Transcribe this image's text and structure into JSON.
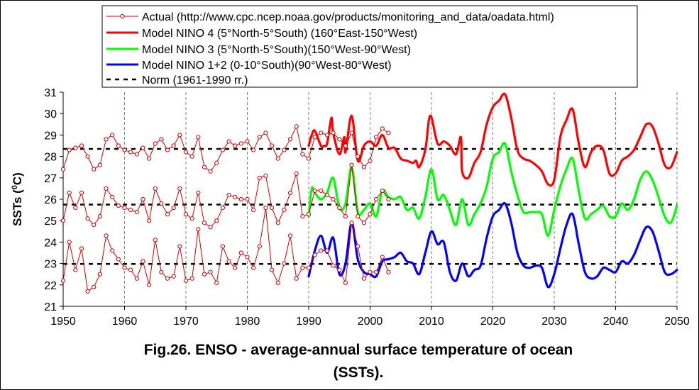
{
  "chart_data": {
    "type": "line",
    "caption_line1": "Fig.26. ENSO - average-annual surface temperature of ocean",
    "caption_line2": "(SSTs).",
    "ylabel_text": "SSTs (",
    "ylabel_sup": "0",
    "ylabel_unit": "C)",
    "xlim": [
      1950,
      2050
    ],
    "ylim": [
      21,
      31
    ],
    "x_ticks": [
      1950,
      1960,
      1970,
      1980,
      1990,
      2000,
      2010,
      2020,
      2030,
      2040,
      2050
    ],
    "y_ticks": [
      21,
      22,
      23,
      24,
      25,
      26,
      27,
      28,
      29,
      30,
      31
    ],
    "grid": "vertical dashed gridlines at each x tick",
    "legend_position": "top",
    "legend": [
      "Actual (http://www.cpc.ncep.noaa.gov/products/monitoring_and_data/oadata.html)",
      "Model NINO 4 (5°North-5°South) (160°East-150°West)",
      "Model NINO 3 (5°North-5°South)(150°West-90°West)",
      "Model NINO 1+2 (0-10°South)(90°West-80°West)",
      "Norm (1961-1990 rr.)"
    ],
    "colors": {
      "actual": "#cc0000",
      "nino4": "#ff0000",
      "nino3": "#00ff00",
      "nino12": "#0000ff",
      "norm": "#000000"
    },
    "norms": [
      28.35,
      25.75,
      22.98
    ],
    "series": [
      {
        "legend_index": 0,
        "style": "actual",
        "x": [
          1950,
          1951,
          1952,
          1953,
          1954,
          1955,
          1956,
          1957,
          1958,
          1959,
          1960,
          1961,
          1962,
          1963,
          1964,
          1965,
          1966,
          1967,
          1968,
          1969,
          1970,
          1971,
          1972,
          1973,
          1974,
          1975,
          1976,
          1977,
          1978,
          1979,
          1980,
          1981,
          1982,
          1983,
          1984,
          1985,
          1986,
          1987,
          1988,
          1989,
          1990,
          1991,
          1992,
          1993,
          1994,
          1995,
          1996,
          1997,
          1998,
          1999,
          2000,
          2001,
          2002,
          2003
        ],
        "values": [
          27.4,
          28.3,
          28.4,
          28.5,
          28.0,
          27.4,
          27.6,
          28.8,
          29.0,
          28.5,
          28.3,
          28.2,
          28.1,
          28.4,
          27.9,
          28.6,
          28.8,
          28.3,
          28.5,
          29.0,
          28.2,
          28.0,
          28.9,
          27.5,
          27.3,
          27.7,
          28.3,
          28.7,
          28.5,
          28.6,
          28.7,
          28.3,
          28.9,
          29.1,
          28.5,
          27.9,
          28.3,
          28.8,
          29.4,
          28.1,
          27.9,
          28.9,
          29.1,
          29.0,
          29.1,
          28.8,
          28.5,
          29.1,
          28.0,
          27.5,
          27.8,
          28.9,
          29.3,
          29.1
        ]
      },
      {
        "legend_index": 0,
        "style": "actual",
        "x": [
          1950,
          1951,
          1952,
          1953,
          1954,
          1955,
          1956,
          1957,
          1958,
          1959,
          1960,
          1961,
          1962,
          1963,
          1964,
          1965,
          1966,
          1967,
          1968,
          1969,
          1970,
          1971,
          1972,
          1973,
          1974,
          1975,
          1976,
          1977,
          1978,
          1979,
          1980,
          1981,
          1982,
          1983,
          1984,
          1985,
          1986,
          1987,
          1988,
          1989,
          1990,
          1991,
          1992,
          1993,
          1994,
          1995,
          1996,
          1997,
          1998,
          1999,
          2000,
          2001,
          2002,
          2003
        ],
        "values": [
          25.0,
          26.3,
          25.6,
          26.3,
          25.1,
          24.8,
          25.2,
          26.5,
          26.1,
          25.7,
          25.6,
          25.5,
          25.4,
          26.0,
          25.0,
          26.5,
          25.8,
          25.3,
          25.6,
          26.5,
          25.3,
          25.1,
          26.3,
          24.9,
          24.7,
          25.0,
          25.6,
          26.2,
          26.1,
          26.0,
          26.0,
          25.5,
          27.0,
          27.1,
          25.6,
          24.9,
          25.5,
          26.3,
          27.2,
          25.2,
          25.3,
          26.4,
          26.4,
          26.2,
          26.0,
          25.6,
          25.2,
          27.6,
          25.2,
          24.9,
          25.3,
          26.0,
          26.4,
          26.0
        ]
      },
      {
        "legend_index": 0,
        "style": "actual",
        "x": [
          1950,
          1951,
          1952,
          1953,
          1954,
          1955,
          1956,
          1957,
          1958,
          1959,
          1960,
          1961,
          1962,
          1963,
          1964,
          1965,
          1966,
          1967,
          1968,
          1969,
          1970,
          1971,
          1972,
          1973,
          1974,
          1975,
          1976,
          1977,
          1978,
          1979,
          1980,
          1981,
          1982,
          1983,
          1984,
          1985,
          1986,
          1987,
          1988,
          1989,
          1990,
          1991,
          1992,
          1993,
          1994,
          1995,
          1996,
          1997,
          1998,
          1999,
          2000,
          2001,
          2002,
          2003
        ],
        "values": [
          22.2,
          24.0,
          22.7,
          23.7,
          21.7,
          21.9,
          22.5,
          24.3,
          23.6,
          23.2,
          22.8,
          22.7,
          22.3,
          23.1,
          22.0,
          24.1,
          22.6,
          22.3,
          22.4,
          23.8,
          22.2,
          22.3,
          24.6,
          22.5,
          22.6,
          22.1,
          23.8,
          23.1,
          22.8,
          23.5,
          23.3,
          22.8,
          23.8,
          25.6,
          22.7,
          22.1,
          23.0,
          24.3,
          22.3,
          22.8,
          22.8,
          23.4,
          23.6,
          23.6,
          22.9,
          22.7,
          22.1,
          24.9,
          23.8,
          22.3,
          22.6,
          22.6,
          23.3,
          22.6
        ]
      },
      {
        "legend_index": 1,
        "style": "nino4",
        "x": [
          1990,
          1990.5,
          1991,
          1992,
          1992.5,
          1993,
          1993.7,
          1994,
          1995,
          1995.8,
          1996,
          1997,
          1998,
          1999,
          2000,
          2001,
          2002,
          2003,
          2004,
          2005,
          2006,
          2007,
          2007.5,
          2008,
          2009,
          2009.8,
          2011,
          2012,
          2013,
          2014,
          2014.8,
          2015,
          2016,
          2017,
          2018,
          2019,
          2020,
          2021,
          2022,
          2023,
          2024,
          2025,
          2026,
          2027,
          2028,
          2029,
          2030,
          2031,
          2032,
          2033,
          2034,
          2035,
          2036,
          2037,
          2038,
          2039,
          2040,
          2041,
          2042,
          2043,
          2044,
          2045,
          2046,
          2047,
          2048,
          2049,
          2050
        ],
        "values": [
          28.5,
          29.0,
          29.2,
          28.5,
          28.5,
          28.6,
          29.8,
          29.1,
          28.1,
          28.9,
          28.2,
          29.9,
          27.8,
          28.5,
          28.7,
          28.5,
          29.0,
          28.4,
          28.4,
          27.9,
          27.8,
          27.7,
          27.8,
          27.5,
          28.3,
          29.9,
          28.6,
          28.7,
          28.5,
          28.1,
          28.9,
          27.3,
          27.0,
          27.7,
          28.2,
          29.5,
          30.3,
          30.6,
          30.9,
          29.8,
          28.3,
          27.9,
          27.8,
          27.6,
          27.3,
          26.7,
          26.9,
          28.9,
          29.7,
          30.2,
          28.6,
          27.5,
          28.2,
          28.5,
          28.3,
          27.2,
          27.2,
          27.8,
          28.0,
          28.3,
          28.9,
          29.5,
          29.4,
          28.6,
          27.6,
          27.5,
          28.2
        ]
      },
      {
        "legend_index": 2,
        "style": "nino3",
        "x": [
          1990,
          1990.5,
          1991,
          1992,
          1993,
          1994,
          1995,
          1996,
          1997,
          1998,
          1999,
          2000,
          2001,
          2002,
          2003,
          2004,
          2005,
          2006,
          2007,
          2008,
          2009,
          2010,
          2011,
          2012,
          2013,
          2014,
          2015,
          2016,
          2017,
          2018,
          2019,
          2020,
          2021,
          2022,
          2023,
          2024,
          2025,
          2026,
          2027,
          2028,
          2029,
          2030,
          2031,
          2032,
          2033,
          2034,
          2035,
          2036,
          2037,
          2038,
          2039,
          2040,
          2041,
          2042,
          2043,
          2044,
          2045,
          2046,
          2047,
          2048,
          2049,
          2050
        ],
        "values": [
          25.2,
          26.5,
          26.3,
          26.0,
          26.3,
          27.0,
          25.6,
          25.8,
          27.5,
          25.4,
          25.5,
          25.8,
          25.2,
          26.4,
          26.1,
          26.0,
          26.1,
          25.5,
          25.6,
          25.1,
          26.1,
          27.4,
          26.0,
          26.2,
          25.5,
          24.8,
          26.0,
          24.8,
          25.3,
          25.8,
          26.6,
          27.9,
          28.2,
          28.6,
          27.3,
          26.2,
          25.4,
          25.4,
          25.4,
          25.3,
          24.3,
          25.5,
          26.6,
          27.4,
          27.9,
          26.4,
          25.1,
          25.3,
          25.5,
          25.7,
          25.2,
          25.2,
          25.8,
          25.5,
          26.0,
          26.9,
          27.3,
          26.9,
          26.1,
          25.2,
          24.9,
          25.7
        ]
      },
      {
        "legend_index": 3,
        "style": "nino12",
        "x": [
          1990,
          1991,
          1992,
          1993,
          1994,
          1995,
          1996,
          1997,
          1998,
          1999,
          2000,
          2001,
          2002,
          2003,
          2004,
          2005,
          2006,
          2007,
          2008,
          2009,
          2010,
          2011,
          2012,
          2013,
          2014,
          2015,
          2016,
          2017,
          2018,
          2019,
          2020,
          2021,
          2022,
          2023,
          2024,
          2025,
          2026,
          2027,
          2028,
          2029,
          2030,
          2031,
          2032,
          2033,
          2034,
          2035,
          2036,
          2037,
          2038,
          2039,
          2040,
          2041,
          2042,
          2043,
          2044,
          2045,
          2046,
          2047,
          2048,
          2049,
          2050
        ],
        "values": [
          22.4,
          23.6,
          24.3,
          23.5,
          24.2,
          22.5,
          23.0,
          24.9,
          23.2,
          22.6,
          22.5,
          22.4,
          23.1,
          23.2,
          23.3,
          23.5,
          23.1,
          23.0,
          22.5,
          23.5,
          24.5,
          23.9,
          24.0,
          22.6,
          22.2,
          23.0,
          22.4,
          22.7,
          22.9,
          24.2,
          25.2,
          25.5,
          25.8,
          24.9,
          23.5,
          22.9,
          22.8,
          22.9,
          22.8,
          21.9,
          22.5,
          23.7,
          24.8,
          25.3,
          23.9,
          22.6,
          22.3,
          22.4,
          22.8,
          22.7,
          22.6,
          23.1,
          23.0,
          23.4,
          24.1,
          24.7,
          24.5,
          23.6,
          22.6,
          22.5,
          22.7
        ]
      }
    ]
  }
}
